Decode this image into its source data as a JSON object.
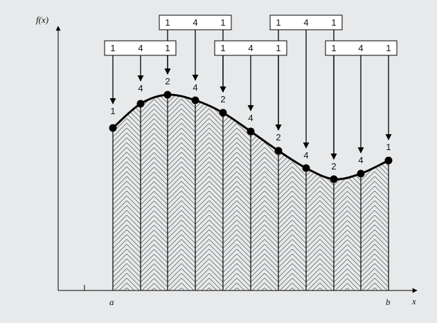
{
  "axes": {
    "y_label": "f(x)",
    "x_label": "x",
    "a_label": "a",
    "b_label": "b"
  },
  "weight_groups": [
    [
      "1",
      "4",
      "1"
    ],
    [
      "1",
      "4",
      "1"
    ],
    [
      "1",
      "4",
      "1"
    ],
    [
      "1",
      "4",
      "1"
    ],
    [
      "1",
      "4",
      "1"
    ]
  ],
  "point_weights": [
    "1",
    "4",
    "2",
    "4",
    "2",
    "4",
    "2",
    "4",
    "2",
    "4",
    "1"
  ],
  "colors": {
    "background": "#e7e9ea",
    "curve": "#000000",
    "hatch": "#555555"
  }
}
